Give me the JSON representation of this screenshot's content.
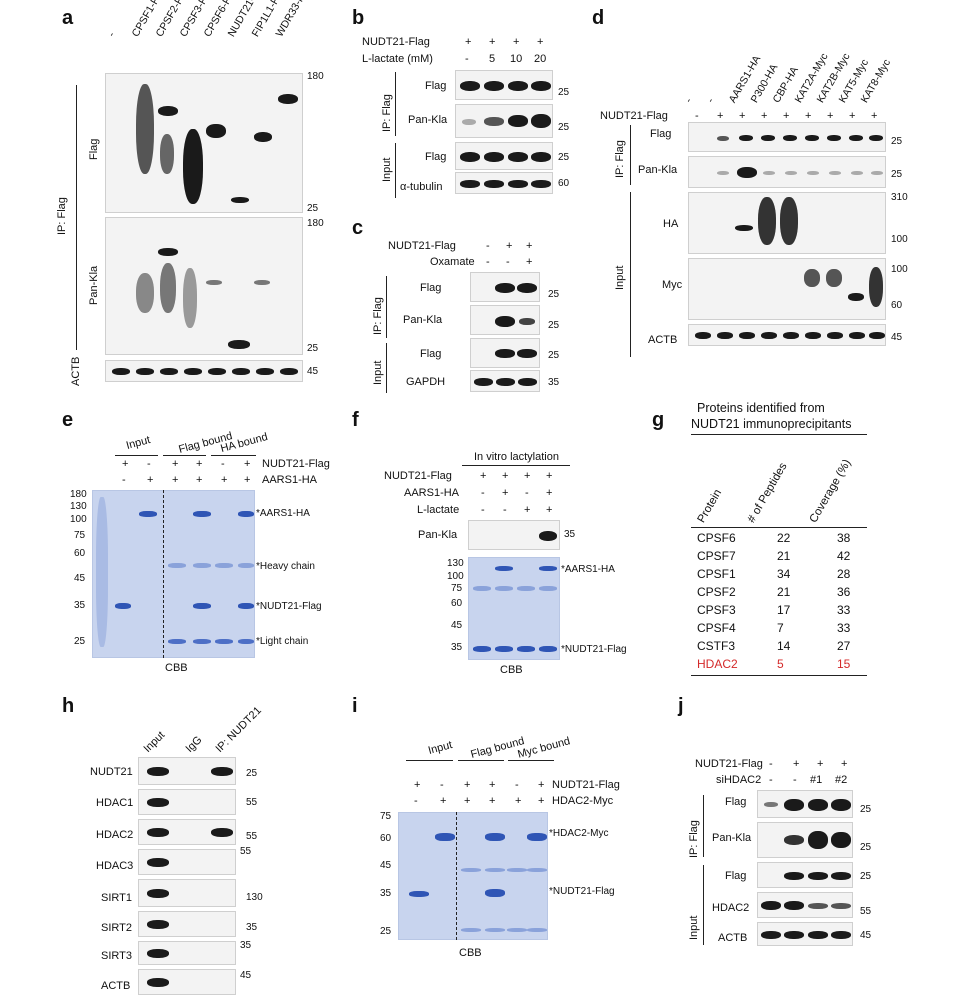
{
  "panels": {
    "a": {
      "letter": "a",
      "lanes": [
        "-",
        "CPSF1-Flag",
        "CPSF2-Flag",
        "CPSF3-Flag",
        "CPSF6-Flag",
        "NUDT21-Flag",
        "FIP1L1-Flag",
        "WDR33-Flag"
      ],
      "group": "IP: Flag",
      "rows": [
        "Flag",
        "Pan-Kla",
        "ACTB"
      ],
      "mw": [
        "180",
        "25",
        "180",
        "25",
        "45"
      ]
    },
    "b": {
      "letter": "b",
      "cond1_label": "NUDT21-Flag",
      "cond1": [
        "+",
        "+",
        "+",
        "+"
      ],
      "cond2_label": "L-lactate (mM)",
      "cond2": [
        "-",
        "5",
        "10",
        "20"
      ],
      "group_ip": "IP: Flag",
      "group_input": "Input",
      "rows": [
        "Flag",
        "Pan-Kla",
        "Flag",
        "α-tubulin"
      ],
      "mw": [
        "25",
        "25",
        "25",
        "60"
      ]
    },
    "c": {
      "letter": "c",
      "cond1_label": "NUDT21-Flag",
      "cond1": [
        "-",
        "+",
        "+"
      ],
      "cond2_label": "Oxamate",
      "cond2": [
        "-",
        "-",
        "+"
      ],
      "group_ip": "IP: Flag",
      "group_input": "Input",
      "rows": [
        "Flag",
        "Pan-Kla",
        "Flag",
        "GAPDH"
      ],
      "mw": [
        "25",
        "25",
        "25",
        "35"
      ]
    },
    "d": {
      "letter": "d",
      "lanes": [
        "-",
        "-",
        "AARS1-HA",
        "P300-HA",
        "CBP-HA",
        "KAT2A-Myc",
        "KAT2B-Myc",
        "KAT5-Myc",
        "KAT8-Myc"
      ],
      "cond_label": "NUDT21-Flag",
      "cond": [
        "-",
        "+",
        "+",
        "+",
        "+",
        "+",
        "+",
        "+",
        "+"
      ],
      "group_ip": "IP: Flag",
      "group_input": "Input",
      "rows": [
        "Flag",
        "Pan-Kla",
        "HA",
        "Myc",
        "ACTB"
      ],
      "mw": [
        "25",
        "25",
        "310",
        "100",
        "100",
        "60",
        "45"
      ]
    },
    "e": {
      "letter": "e",
      "groups": [
        "Input",
        "Flag bound",
        "HA bound"
      ],
      "cond1_label": "NUDT21-Flag",
      "cond1": [
        "+",
        "-",
        "+",
        "+",
        "-",
        "+"
      ],
      "cond2_label": "AARS1-HA",
      "cond2": [
        "-",
        "+",
        "+",
        "+",
        "+",
        "+"
      ],
      "mw": [
        "180",
        "130",
        "100",
        "75",
        "60",
        "45",
        "35",
        "25"
      ],
      "bands": [
        "*AARS1-HA",
        "*Heavy chain",
        "*NUDT21-Flag",
        "*Light chain"
      ],
      "stain": "CBB"
    },
    "f": {
      "letter": "f",
      "header": "In vitro lactylation",
      "cond1_label": "NUDT21-Flag",
      "cond1": [
        "+",
        "+",
        "+",
        "+"
      ],
      "cond2_label": "AARS1-HA",
      "cond2": [
        "-",
        "+",
        "-",
        "+"
      ],
      "cond3_label": "L-lactate",
      "cond3": [
        "-",
        "-",
        "+",
        "+"
      ],
      "blot_label": "Pan-Kla",
      "blot_mw": "35",
      "mw": [
        "130",
        "100",
        "75",
        "60",
        "45",
        "35"
      ],
      "bands": [
        "*AARS1-HA",
        "*NUDT21-Flag"
      ],
      "stain": "CBB"
    },
    "g": {
      "letter": "g",
      "title_line1": "Proteins identified from",
      "title_line2": "NUDT21 immunoprecipitants",
      "headers": [
        "Protein",
        "# of Peptides",
        "Coverage (%)"
      ],
      "rows": [
        {
          "protein": "CPSF6",
          "peptides": "22",
          "coverage": "38"
        },
        {
          "protein": "CPSF7",
          "peptides": "21",
          "coverage": "42"
        },
        {
          "protein": "CPSF1",
          "peptides": "34",
          "coverage": "28"
        },
        {
          "protein": "CPSF2",
          "peptides": "21",
          "coverage": "36"
        },
        {
          "protein": "CPSF3",
          "peptides": "17",
          "coverage": "33"
        },
        {
          "protein": "CPSF4",
          "peptides": "7",
          "coverage": "33"
        },
        {
          "protein": "CSTF3",
          "peptides": "14",
          "coverage": "27"
        },
        {
          "protein": "HDAC2",
          "peptides": "5",
          "coverage": "15"
        }
      ],
      "highlight_color": "#d42a2a"
    },
    "h": {
      "letter": "h",
      "lanes": [
        "Input",
        "IgG",
        "IP: NUDT21"
      ],
      "rows": [
        "NUDT21",
        "HDAC1",
        "HDAC2",
        "HDAC3",
        "SIRT1",
        "SIRT2",
        "SIRT3",
        "ACTB"
      ],
      "mw": [
        "25",
        "55",
        "55",
        "55",
        "130",
        "35",
        "35",
        "45"
      ]
    },
    "i": {
      "letter": "i",
      "groups": [
        "Input",
        "Flag bound",
        "Myc bound"
      ],
      "cond1_label": "NUDT21-Flag",
      "cond1": [
        "+",
        "-",
        "+",
        "+",
        "-",
        "+"
      ],
      "cond2_label": "HDAC2-Myc",
      "cond2": [
        "-",
        "+",
        "+",
        "+",
        "+",
        "+"
      ],
      "mw": [
        "75",
        "60",
        "45",
        "35",
        "25"
      ],
      "bands": [
        "*HDAC2-Myc",
        "*NUDT21-Flag"
      ],
      "stain": "CBB"
    },
    "j": {
      "letter": "j",
      "cond1_label": "NUDT21-Flag",
      "cond1": [
        "-",
        "+",
        "+",
        "+"
      ],
      "cond2_label": "siHDAC2",
      "cond2": [
        "-",
        "-",
        "#1",
        "#2"
      ],
      "group_ip": "IP: Flag",
      "group_input": "Input",
      "rows": [
        "Flag",
        "Pan-Kla",
        "Flag",
        "HDAC2",
        "ACTB"
      ],
      "mw": [
        "25",
        "25",
        "25",
        "55",
        "45"
      ]
    }
  }
}
